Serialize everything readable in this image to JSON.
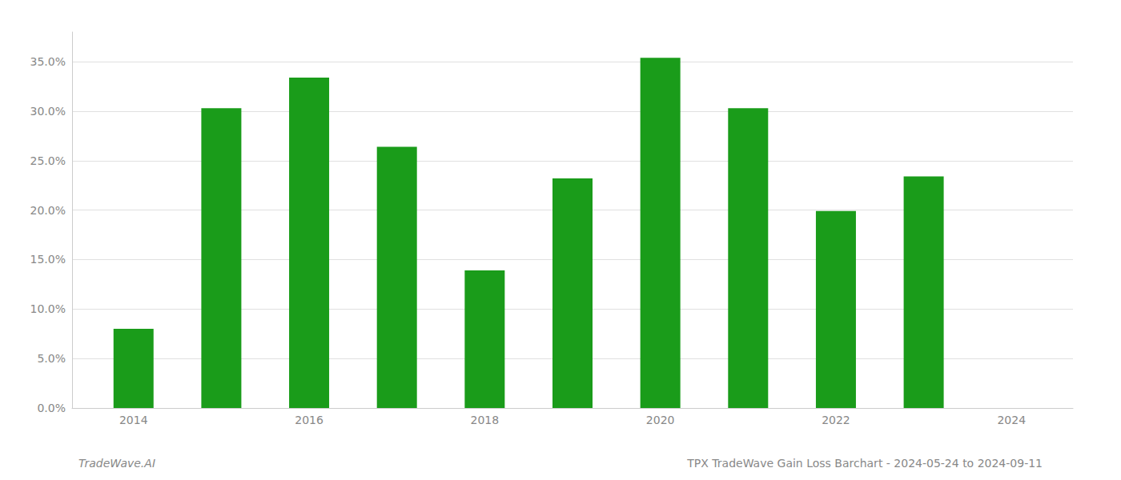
{
  "chart_data": {
    "type": "bar",
    "x": [
      2014,
      2015,
      2016,
      2017,
      2018,
      2019,
      2020,
      2021,
      2022,
      2023
    ],
    "values": [
      0.08,
      0.303,
      0.334,
      0.264,
      0.139,
      0.232,
      0.354,
      0.303,
      0.199,
      0.234
    ],
    "color": "#1a9c1a",
    "xlim": [
      2013.3,
      2024.7
    ],
    "xticks": [
      2014,
      2016,
      2018,
      2020,
      2022,
      2024
    ],
    "ylim": [
      0,
      0.38
    ],
    "yticks": [
      {
        "value": 0.0,
        "label": "0.0%"
      },
      {
        "value": 0.05,
        "label": "5.0%"
      },
      {
        "value": 0.1,
        "label": "10.0%"
      },
      {
        "value": 0.15,
        "label": "15.0%"
      },
      {
        "value": 0.2,
        "label": "20.0%"
      },
      {
        "value": 0.25,
        "label": "25.0%"
      },
      {
        "value": 0.3,
        "label": "30.0%"
      },
      {
        "value": 0.35,
        "label": "35.0%"
      }
    ],
    "grid": true,
    "annotations": [
      "TradeWave.AI",
      "TPX TradeWave Gain Loss Barchart - 2024-05-24 to 2024-09-11"
    ]
  }
}
